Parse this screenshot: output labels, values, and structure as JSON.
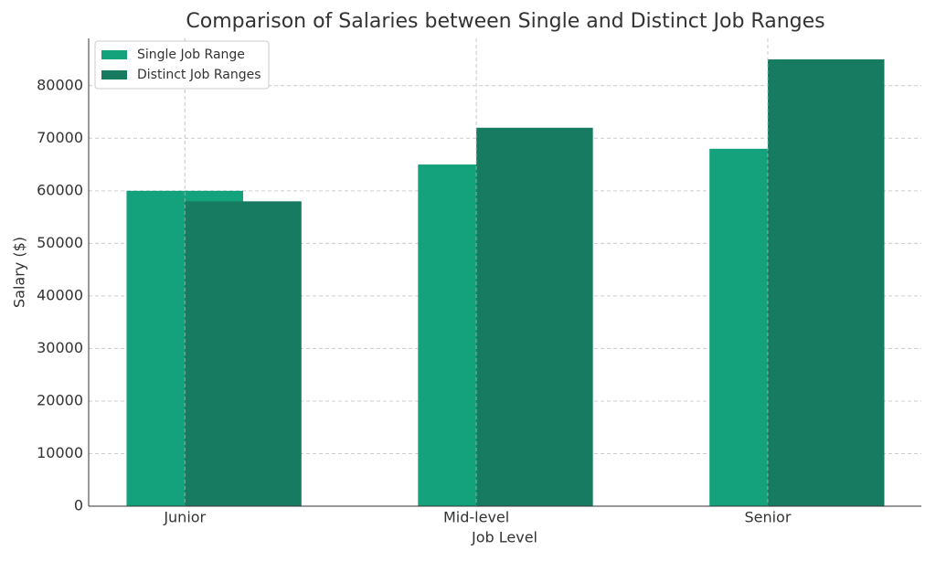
{
  "chart_data": {
    "type": "bar",
    "title": "Comparison of Salaries between Single and Distinct Job Ranges",
    "xlabel": "Job Level",
    "ylabel": "Salary ($)",
    "categories": [
      "Junior",
      "Mid-level",
      "Senior"
    ],
    "series": [
      {
        "name": "Single Job Range",
        "color": "#14a27c",
        "values": [
          60000,
          65000,
          68000
        ]
      },
      {
        "name": "Distinct Job Ranges",
        "color": "#167b61",
        "values": [
          58000,
          72000,
          85000
        ]
      }
    ],
    "ylim": [
      0,
      89000
    ],
    "yticks": [
      0,
      10000,
      20000,
      30000,
      40000,
      50000,
      60000,
      70000,
      80000
    ],
    "grid": true,
    "legend": "upper left"
  }
}
